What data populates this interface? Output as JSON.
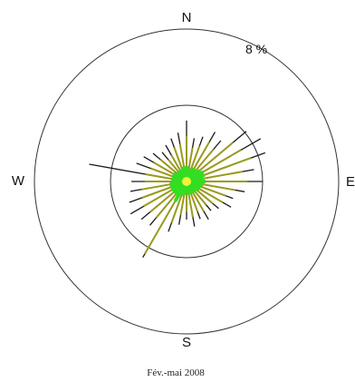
{
  "chart_data": {
    "type": "wind-rose",
    "title": "",
    "caption": "Fév.-mai 2008",
    "directions": {
      "north": "N",
      "east": "E",
      "south": "S",
      "west": "W"
    },
    "rings": [
      {
        "value": 4,
        "label": ""
      },
      {
        "value": 8,
        "label": "8 %"
      }
    ],
    "outer_ring_label": "8 %",
    "series_colors": {
      "dark": "#1a1a1a",
      "olive": "#9a9a1e",
      "green": "#33dd22",
      "yellow": "#f2f23a"
    },
    "angle_unit": "degrees clockwise from north",
    "petals": [
      {
        "angle": 0,
        "total": 3.2,
        "olive": 2.4,
        "green": 0.8
      },
      {
        "angle": 10,
        "total": 2.3,
        "olive": 1.8,
        "green": 0.7
      },
      {
        "angle": 20,
        "total": 2.5,
        "olive": 2.0,
        "green": 0.7
      },
      {
        "angle": 30,
        "total": 3.0,
        "olive": 2.4,
        "green": 0.8
      },
      {
        "angle": 40,
        "total": 2.8,
        "olive": 2.2,
        "green": 0.8
      },
      {
        "angle": 50,
        "total": 4.1,
        "olive": 3.2,
        "green": 0.9
      },
      {
        "angle": 60,
        "total": 4.5,
        "olive": 3.3,
        "green": 1.0
      },
      {
        "angle": 70,
        "total": 4.4,
        "olive": 3.6,
        "green": 1.0
      },
      {
        "angle": 80,
        "total": 3.6,
        "olive": 3.0,
        "green": 0.9
      },
      {
        "angle": 90,
        "total": 4.0,
        "olive": 3.2,
        "green": 1.0
      },
      {
        "angle": 100,
        "total": 3.1,
        "olive": 2.6,
        "green": 0.9
      },
      {
        "angle": 110,
        "total": 2.6,
        "olive": 2.2,
        "green": 0.8
      },
      {
        "angle": 120,
        "total": 2.7,
        "olive": 2.2,
        "green": 0.8
      },
      {
        "angle": 130,
        "total": 2.2,
        "olive": 1.8,
        "green": 0.7
      },
      {
        "angle": 140,
        "total": 2.0,
        "olive": 1.6,
        "green": 0.7
      },
      {
        "angle": 150,
        "total": 2.3,
        "olive": 1.8,
        "green": 0.7
      },
      {
        "angle": 160,
        "total": 2.1,
        "olive": 1.7,
        "green": 0.7
      },
      {
        "angle": 170,
        "total": 2.4,
        "olive": 1.9,
        "green": 0.7
      },
      {
        "angle": 180,
        "total": 2.0,
        "olive": 1.6,
        "green": 0.6
      },
      {
        "angle": 190,
        "total": 2.3,
        "olive": 1.8,
        "green": 0.7
      },
      {
        "angle": 200,
        "total": 2.8,
        "olive": 2.3,
        "green": 0.8
      },
      {
        "angle": 210,
        "total": 4.6,
        "olive": 4.4,
        "green": 1.2
      },
      {
        "angle": 220,
        "total": 3.0,
        "olive": 2.5,
        "green": 0.9
      },
      {
        "angle": 230,
        "total": 3.1,
        "olive": 2.5,
        "green": 0.9
      },
      {
        "angle": 240,
        "total": 3.4,
        "olive": 2.6,
        "green": 0.9
      },
      {
        "angle": 250,
        "total": 3.2,
        "olive": 2.5,
        "green": 0.9
      },
      {
        "angle": 260,
        "total": 3.0,
        "olive": 2.4,
        "green": 0.9
      },
      {
        "angle": 270,
        "total": 2.9,
        "olive": 2.2,
        "green": 0.8
      },
      {
        "angle": 280,
        "total": 5.2,
        "olive": 2.2,
        "green": 0.8
      },
      {
        "angle": 290,
        "total": 2.8,
        "olive": 2.0,
        "green": 0.8
      },
      {
        "angle": 300,
        "total": 2.6,
        "olive": 2.0,
        "green": 0.8
      },
      {
        "angle": 310,
        "total": 2.3,
        "olive": 1.8,
        "green": 0.7
      },
      {
        "angle": 320,
        "total": 2.0,
        "olive": 1.5,
        "green": 0.7
      },
      {
        "angle": 330,
        "total": 2.2,
        "olive": 1.6,
        "green": 0.7
      },
      {
        "angle": 340,
        "total": 2.4,
        "olive": 1.9,
        "green": 0.7
      },
      {
        "angle": 350,
        "total": 2.6,
        "olive": 2.0,
        "green": 0.8
      }
    ],
    "legend": "none",
    "grid": false
  }
}
